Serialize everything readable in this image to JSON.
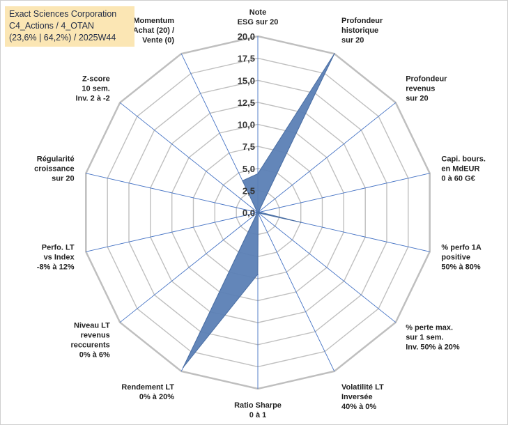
{
  "header": {
    "company": "Exact Sciences Corporation",
    "classification": "C4_Actions / 4_OTAN",
    "stats": "(23,6% | 64,2%) / 2025W44"
  },
  "colors": {
    "fill": "#5b7fb5",
    "fill_stroke": "#4a6ea3",
    "grid": "#bfbfbf",
    "spoke": "#4472c4",
    "title_bg": "#fbe6b4"
  },
  "chart_data": {
    "type": "radar",
    "title": "Exact Sciences Corporation",
    "r_range": [
      0,
      20
    ],
    "r_step": 2.5,
    "tick_labels": [
      "0,0",
      "2,5",
      "5,0",
      "7,5",
      "10,0",
      "12,5",
      "15,0",
      "17,5",
      "20,0"
    ],
    "axes": [
      {
        "label_lines": [
          "Note",
          "ESG sur 20"
        ],
        "value": 4.4
      },
      {
        "label_lines": [
          "Profondeur",
          "historique",
          "sur 20"
        ],
        "value": 20.0
      },
      {
        "label_lines": [
          "Profondeur",
          "revenus",
          "sur 20"
        ],
        "value": 0.1
      },
      {
        "label_lines": [
          "Capi. bours.",
          "en MdEUR",
          "0 à 60 G€"
        ],
        "value": 0.2
      },
      {
        "label_lines": [
          "% perfo 1A",
          "positive",
          "50% à 80%"
        ],
        "value": 5.0
      },
      {
        "label_lines": [
          "% perte max.",
          "sur 1 sem.",
          "Inv. 50% à 20%"
        ],
        "value": 0.1
      },
      {
        "label_lines": [
          "Volatilité LT",
          "Inversée",
          "40% à 0%"
        ],
        "value": 0.1
      },
      {
        "label_lines": [
          "Ratio Sharpe",
          "0 à 1"
        ],
        "value": 7.0
      },
      {
        "label_lines": [
          "Rendement LT",
          "0% à 20%"
        ],
        "value": 19.5
      },
      {
        "label_lines": [
          "Niveau LT",
          "revenus",
          "reccurents",
          "0% à 6%"
        ],
        "value": 0.1
      },
      {
        "label_lines": [
          "Perfo. LT",
          "vs Index",
          "-8% à 12%"
        ],
        "value": 0.1
      },
      {
        "label_lines": [
          "Régularité",
          "croissance",
          "sur 20"
        ],
        "value": 0.1
      },
      {
        "label_lines": [
          "Z-score",
          "10 sem.",
          "Inv. 2 à -2"
        ],
        "value": 0.1
      },
      {
        "label_lines": [
          "Momentum",
          "Achat (20) /",
          "Vente (0)"
        ],
        "value": 4.0
      }
    ]
  }
}
